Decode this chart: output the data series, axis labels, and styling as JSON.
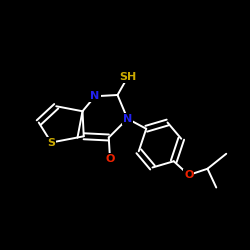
{
  "background_color": "#000000",
  "bond_color": "#ffffff",
  "atom_colors": {
    "N": "#2222ee",
    "S": "#ccaa00",
    "O": "#ee2200",
    "SH": "#ccaa00"
  },
  "figsize": [
    2.5,
    2.5
  ],
  "dpi": 100,
  "xlim": [
    0,
    10
  ],
  "ylim": [
    0,
    10
  ],
  "lw": 1.4,
  "fontsize": 7.5
}
